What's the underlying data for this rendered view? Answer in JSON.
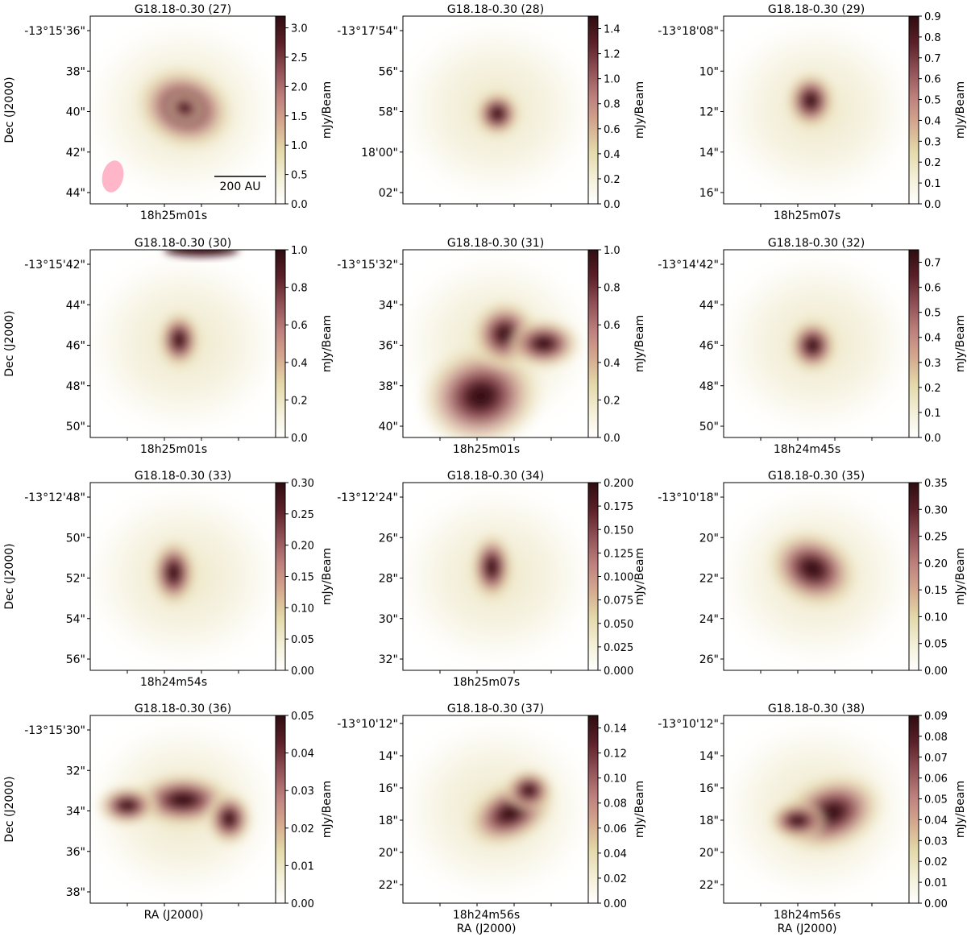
{
  "figure": {
    "colorbar_label": "mJy/Beam",
    "colormap": [
      "#ffffff",
      "#f3efd6",
      "#e3d8a8",
      "#d4a88f",
      "#bd7f7c",
      "#8f4f55",
      "#5b2028",
      "#2e0c10"
    ]
  },
  "chart_data": [
    {
      "type": "heatmap",
      "title": "G18.18-0.30 (27)",
      "ylabel": "Dec (J2000)",
      "xlabel": "",
      "ra_ticks": [
        "18h25m01s"
      ],
      "dec_ticks": [
        "-13°15'36\"",
        "38\"",
        "40\"",
        "42\"",
        "44\""
      ],
      "colorbar_ticks": [
        "0.0",
        "0.5",
        "1.0",
        "1.5",
        "2.0",
        "2.5",
        "3.0"
      ],
      "vmax": 3.2,
      "scalebar": "200 AU",
      "beam_color": "#ffb6c8"
    },
    {
      "type": "heatmap",
      "title": "G18.18-0.30 (28)",
      "ylabel": "",
      "xlabel": "",
      "ra_ticks": [],
      "dec_ticks": [
        "-13°17'54\"",
        "56\"",
        "58\"",
        "18'00\"",
        "02\""
      ],
      "colorbar_ticks": [
        "0.0",
        "0.2",
        "0.4",
        "0.6",
        "0.8",
        "1.0",
        "1.2",
        "1.4"
      ],
      "vmax": 1.5
    },
    {
      "type": "heatmap",
      "title": "G18.18-0.30 (29)",
      "ylabel": "",
      "xlabel": "",
      "ra_ticks": [
        "18h25m07s"
      ],
      "dec_ticks": [
        "-13°18'08\"",
        "10\"",
        "12\"",
        "14\"",
        "16\""
      ],
      "colorbar_ticks": [
        "0.0",
        "0.1",
        "0.2",
        "0.3",
        "0.4",
        "0.5",
        "0.6",
        "0.7",
        "0.8",
        "0.9"
      ],
      "vmax": 0.9
    },
    {
      "type": "heatmap",
      "title": "G18.18-0.30 (30)",
      "ylabel": "Dec (J2000)",
      "xlabel": "",
      "ra_ticks": [
        "18h25m01s"
      ],
      "dec_ticks": [
        "-13°15'42\"",
        "44\"",
        "46\"",
        "48\"",
        "50\""
      ],
      "colorbar_ticks": [
        "0.0",
        "0.2",
        "0.4",
        "0.6",
        "0.8",
        "1.0"
      ],
      "vmax": 1.0
    },
    {
      "type": "heatmap",
      "title": "G18.18-0.30 (31)",
      "ylabel": "",
      "xlabel": "",
      "ra_ticks": [
        "18h25m01s"
      ],
      "dec_ticks": [
        "-13°15'32\"",
        "34\"",
        "36\"",
        "38\"",
        "40\""
      ],
      "colorbar_ticks": [
        "0.0",
        "0.2",
        "0.4",
        "0.6",
        "0.8",
        "1.0"
      ],
      "vmax": 1.0
    },
    {
      "type": "heatmap",
      "title": "G18.18-0.30 (32)",
      "ylabel": "",
      "xlabel": "",
      "ra_ticks": [
        "18h24m45s"
      ],
      "dec_ticks": [
        "-13°14'42\"",
        "44\"",
        "46\"",
        "48\"",
        "50\""
      ],
      "colorbar_ticks": [
        "0.0",
        "0.1",
        "0.2",
        "0.3",
        "0.4",
        "0.5",
        "0.6",
        "0.7"
      ],
      "vmax": 0.75
    },
    {
      "type": "heatmap",
      "title": "G18.18-0.30 (33)",
      "ylabel": "Dec (J2000)",
      "xlabel": "",
      "ra_ticks": [
        "18h24m54s"
      ],
      "dec_ticks": [
        "-13°12'48\"",
        "50\"",
        "52\"",
        "54\"",
        "56\""
      ],
      "colorbar_ticks": [
        "0.00",
        "0.05",
        "0.10",
        "0.15",
        "0.20",
        "0.25",
        "0.30"
      ],
      "vmax": 0.3
    },
    {
      "type": "heatmap",
      "title": "G18.18-0.30 (34)",
      "ylabel": "",
      "xlabel": "",
      "ra_ticks": [
        "18h25m07s"
      ],
      "dec_ticks": [
        "-13°12'24\"",
        "26\"",
        "28\"",
        "30\"",
        "32\""
      ],
      "colorbar_ticks": [
        "0.000",
        "0.025",
        "0.050",
        "0.075",
        "0.100",
        "0.125",
        "0.150",
        "0.175",
        "0.200"
      ],
      "vmax": 0.2
    },
    {
      "type": "heatmap",
      "title": "G18.18-0.30 (35)",
      "ylabel": "",
      "xlabel": "",
      "ra_ticks": [],
      "dec_ticks": [
        "-13°10'18\"",
        "20\"",
        "22\"",
        "24\"",
        "26\""
      ],
      "colorbar_ticks": [
        "0.00",
        "0.05",
        "0.10",
        "0.15",
        "0.20",
        "0.25",
        "0.30",
        "0.35"
      ],
      "vmax": 0.35
    },
    {
      "type": "heatmap",
      "title": "G18.18-0.30 (36)",
      "ylabel": "Dec (J2000)",
      "xlabel": "RA (J2000)",
      "ra_ticks": [],
      "dec_ticks": [
        "-13°15'30\"",
        "32\"",
        "34\"",
        "36\"",
        "38\""
      ],
      "colorbar_ticks": [
        "0.00",
        "0.01",
        "0.02",
        "0.03",
        "0.04",
        "0.05"
      ],
      "vmax": 0.05
    },
    {
      "type": "heatmap",
      "title": "G18.18-0.30 (37)",
      "ylabel": "",
      "xlabel": "RA (J2000)",
      "ra_ticks": [
        "18h24m56s"
      ],
      "dec_ticks": [
        "-13°10'12\"",
        "14\"",
        "16\"",
        "18\"",
        "20\"",
        "22\""
      ],
      "colorbar_ticks": [
        "0.00",
        "0.02",
        "0.04",
        "0.06",
        "0.08",
        "0.10",
        "0.12",
        "0.14"
      ],
      "vmax": 0.15
    },
    {
      "type": "heatmap",
      "title": "G18.18-0.30 (38)",
      "ylabel": "",
      "xlabel": "RA (J2000)",
      "ra_ticks": [
        "18h24m56s"
      ],
      "dec_ticks": [
        "-13°10'12\"",
        "14\"",
        "16\"",
        "18\"",
        "20\"",
        "22\""
      ],
      "colorbar_ticks": [
        "0.00",
        "0.01",
        "0.02",
        "0.03",
        "0.04",
        "0.05",
        "0.06",
        "0.07",
        "0.08",
        "0.09"
      ],
      "vmax": 0.09
    }
  ]
}
